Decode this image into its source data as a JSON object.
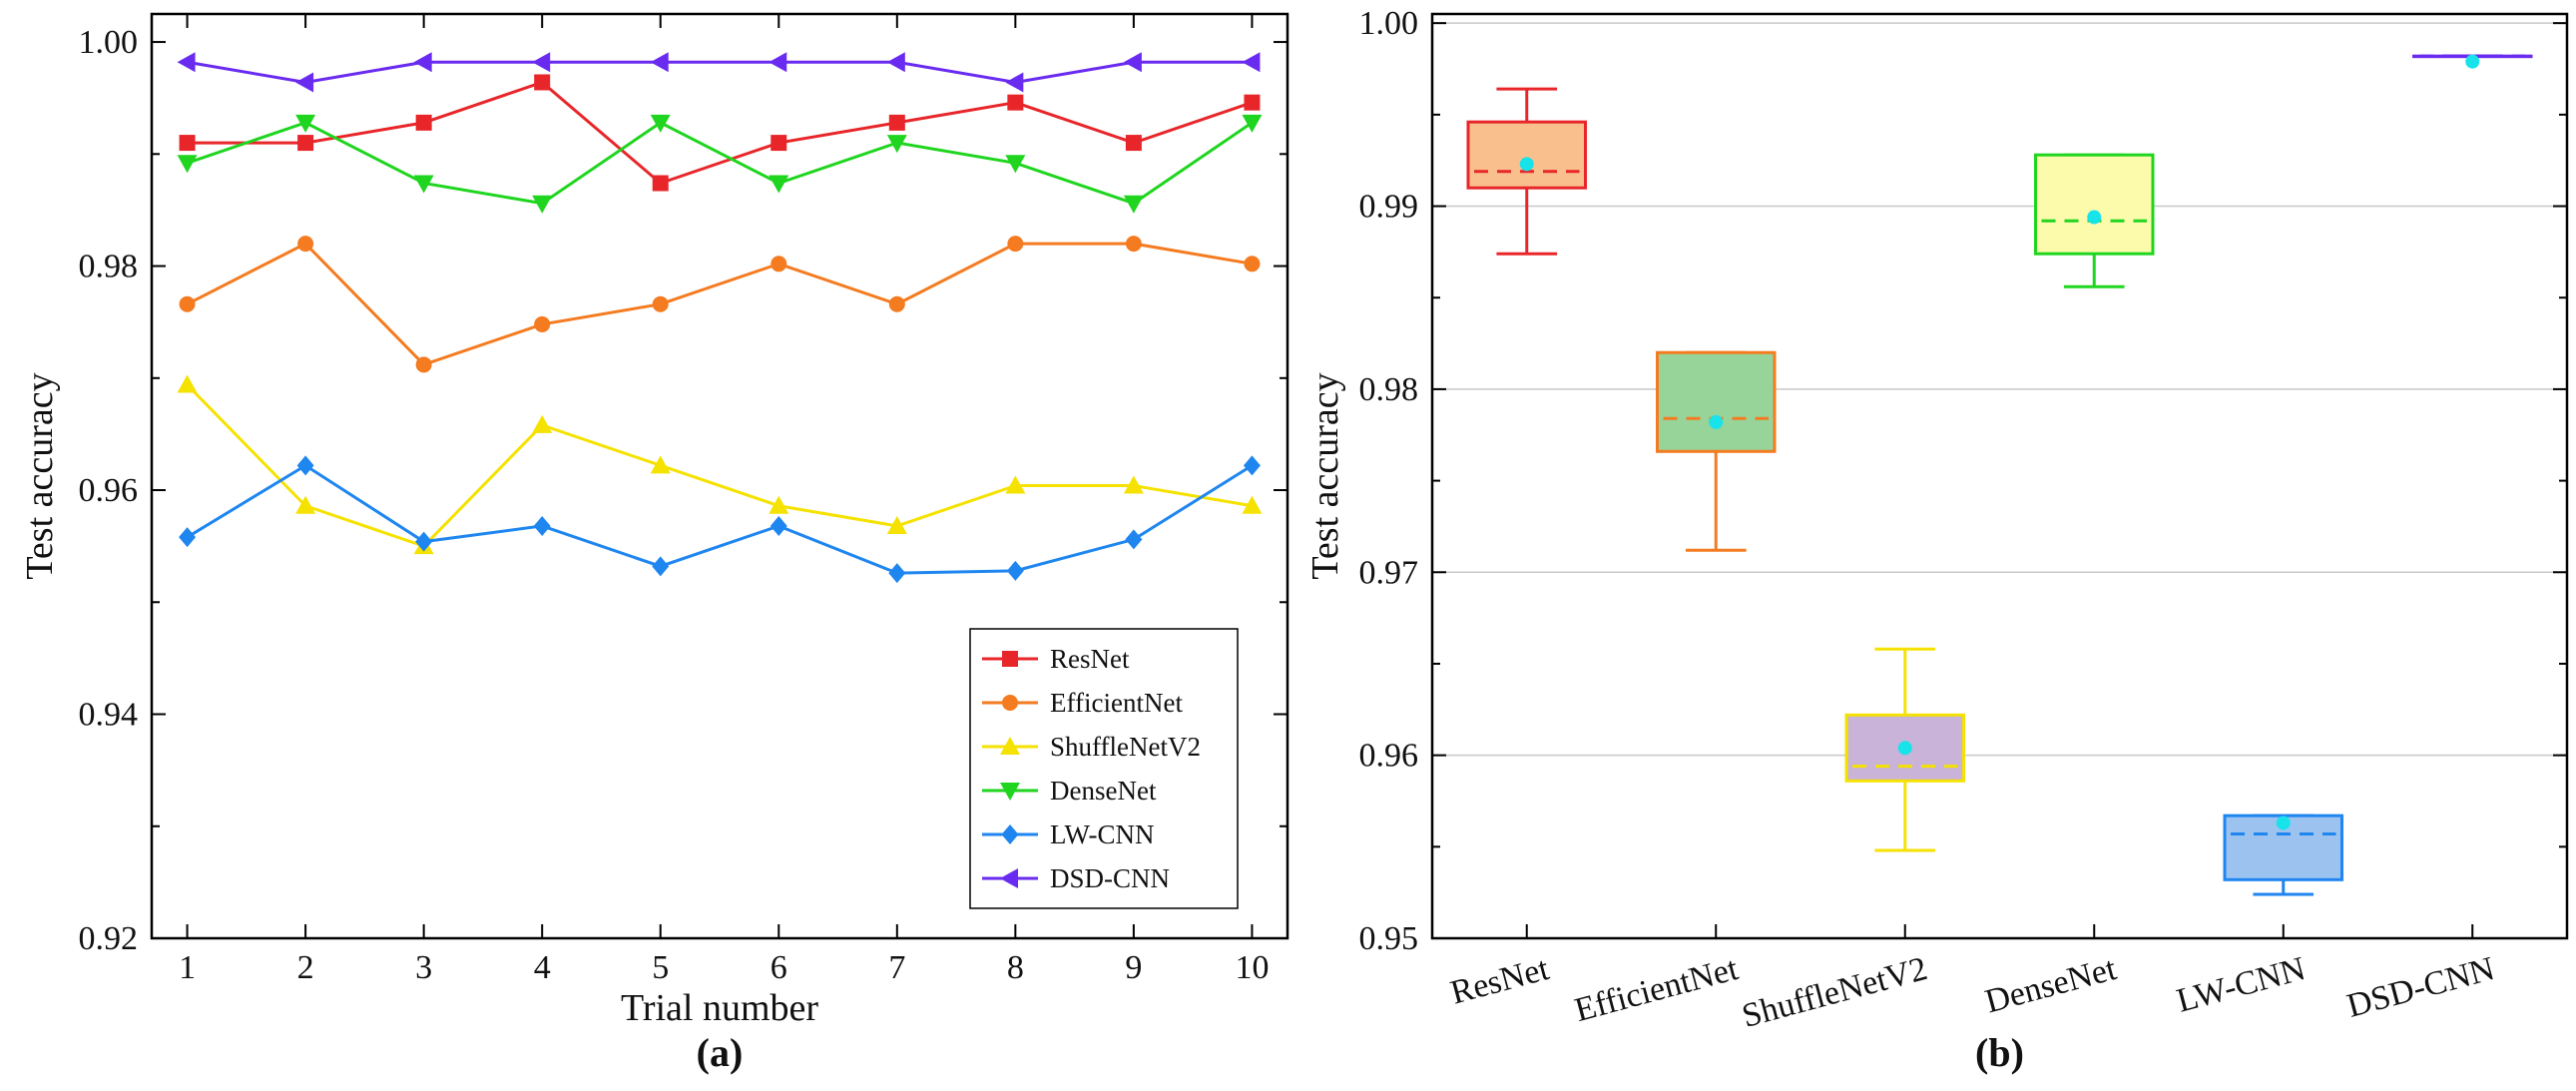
{
  "chart_data": [
    {
      "type": "line",
      "title": "",
      "panel_label": "(a)",
      "xlabel": "Trial number",
      "ylabel": "Test accuracy",
      "x": [
        1,
        2,
        3,
        4,
        5,
        6,
        7,
        8,
        9,
        10
      ],
      "xlim": [
        0.7,
        10.3
      ],
      "ylim": [
        0.92,
        1.0025
      ],
      "yticks": [
        0.92,
        0.94,
        0.96,
        0.98,
        1.0
      ],
      "ytick_labels": [
        "0.92",
        "0.94",
        "0.96",
        "0.98",
        "1.00"
      ],
      "xtick_labels": [
        "1",
        "2",
        "3",
        "4",
        "5",
        "6",
        "7",
        "8",
        "9",
        "10"
      ],
      "legend_position": "bottom-right",
      "series": [
        {
          "name": "ResNet",
          "color": "#e8262a",
          "marker": "square",
          "values": [
            0.991,
            0.991,
            0.9928,
            0.9964,
            0.9874,
            0.991,
            0.9928,
            0.9946,
            0.991,
            0.9946
          ]
        },
        {
          "name": "EfficientNet",
          "color": "#f47b20",
          "marker": "circle",
          "values": [
            0.9766,
            0.982,
            0.9712,
            0.9748,
            0.9766,
            0.9802,
            0.9766,
            0.982,
            0.982,
            0.9802
          ]
        },
        {
          "name": "ShuffleNetV2",
          "color": "#f5e200",
          "marker": "triangle-up",
          "values": [
            0.9694,
            0.9586,
            0.955,
            0.9658,
            0.9622,
            0.9586,
            0.9568,
            0.9604,
            0.9604,
            0.9586
          ]
        },
        {
          "name": "DenseNet",
          "color": "#1fd51f",
          "marker": "triangle-down",
          "values": [
            0.9892,
            0.9928,
            0.9874,
            0.9856,
            0.9928,
            0.9874,
            0.991,
            0.9892,
            0.9856,
            0.9928
          ]
        },
        {
          "name": "LW-CNN",
          "color": "#1f86f0",
          "marker": "diamond",
          "values": [
            0.9558,
            0.9622,
            0.9554,
            0.9568,
            0.9532,
            0.9568,
            0.9526,
            0.9528,
            0.9556,
            0.9622
          ]
        },
        {
          "name": "DSD-CNN",
          "color": "#6a2bf0",
          "marker": "triangle-left",
          "values": [
            0.9982,
            0.9964,
            0.9982,
            0.9982,
            0.9982,
            0.9982,
            0.9982,
            0.9964,
            0.9982,
            0.9982
          ]
        }
      ]
    },
    {
      "type": "box",
      "title": "",
      "panel_label": "(b)",
      "xlabel": "",
      "ylabel": "Test accuracy",
      "ylim": [
        0.95,
        1.0005
      ],
      "yticks": [
        0.95,
        0.96,
        0.97,
        0.98,
        0.99,
        1.0
      ],
      "ytick_labels": [
        "0.95",
        "0.96",
        "0.97",
        "0.98",
        "0.99",
        "1.00"
      ],
      "grid": true,
      "categories": [
        "ResNet",
        "EfficientNet",
        "ShuffleNetV2",
        "DenseNet",
        "LW-CNN",
        "DSD-CNN"
      ],
      "boxes": [
        {
          "name": "ResNet",
          "whisker_low": 0.9874,
          "q1": 0.991,
          "median": 0.9919,
          "q3": 0.9946,
          "whisker_high": 0.9964,
          "mean": 0.9923,
          "edge_color": "#e8262a",
          "fill_color": "#f9c08d",
          "median_color": "#e8262a"
        },
        {
          "name": "EfficientNet",
          "whisker_low": 0.9712,
          "q1": 0.9766,
          "median": 0.9784,
          "q3": 0.982,
          "whisker_high": 0.982,
          "mean": 0.9782,
          "edge_color": "#f47b20",
          "fill_color": "#96d49a",
          "median_color": "#f47b20"
        },
        {
          "name": "ShuffleNetV2",
          "whisker_low": 0.9548,
          "q1": 0.9586,
          "median": 0.9594,
          "q3": 0.9622,
          "whisker_high": 0.9658,
          "mean": 0.9604,
          "edge_color": "#f5e200",
          "fill_color": "#c9b3d8",
          "median_color": "#f5e200"
        },
        {
          "name": "DenseNet",
          "whisker_low": 0.9856,
          "q1": 0.9874,
          "median": 0.9892,
          "q3": 0.9928,
          "whisker_high": 0.9928,
          "mean": 0.9894,
          "edge_color": "#1fd51f",
          "fill_color": "#fbfbab",
          "median_color": "#1fd51f"
        },
        {
          "name": "LW-CNN",
          "whisker_low": 0.9524,
          "q1": 0.9532,
          "median": 0.9557,
          "q3": 0.9567,
          "whisker_high": 0.9567,
          "mean": 0.9563,
          "edge_color": "#1f86f0",
          "fill_color": "#9cc3ef",
          "median_color": "#1f86f0"
        },
        {
          "name": "DSD-CNN",
          "whisker_low": 0.9982,
          "q1": 0.9982,
          "median": 0.9982,
          "q3": 0.9982,
          "whisker_high": 0.9982,
          "mean": 0.9979,
          "edge_color": "#6a2bf0",
          "fill_color": "#c9b8f5",
          "median_color": "#6a2bf0"
        }
      ],
      "mean_color": "#19e3ea"
    }
  ]
}
